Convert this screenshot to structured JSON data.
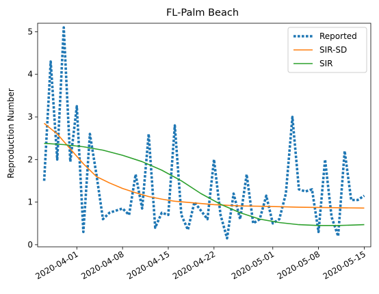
{
  "chart_data": {
    "type": "line",
    "title": "FL-Palm Beach",
    "xlabel": "",
    "ylabel": "Reproduction Number",
    "x_ticks": [
      "2020-04-01",
      "2020-04-08",
      "2020-04-15",
      "2020-04-22",
      "2020-05-01",
      "2020-05-08",
      "2020-05-15"
    ],
    "y_ticks": [
      "0",
      "1",
      "2",
      "3",
      "4",
      "5"
    ],
    "xlim": [
      "2020-03-26",
      "2020-05-16"
    ],
    "ylim": [
      -0.05,
      5.2
    ],
    "grid": false,
    "legend_position": "top-right",
    "series": [
      {
        "name": "Reported",
        "style": "dotted",
        "color": "#1f77b4",
        "points": [
          [
            "2020-03-27",
            1.5
          ],
          [
            "2020-03-28",
            4.3
          ],
          [
            "2020-03-29",
            2.0
          ],
          [
            "2020-03-30",
            5.1
          ],
          [
            "2020-03-31",
            1.95
          ],
          [
            "2020-04-01",
            3.25
          ],
          [
            "2020-04-02",
            0.3
          ],
          [
            "2020-04-03",
            2.6
          ],
          [
            "2020-04-04",
            1.65
          ],
          [
            "2020-04-05",
            0.6
          ],
          [
            "2020-04-06",
            0.75
          ],
          [
            "2020-04-07",
            0.8
          ],
          [
            "2020-04-08",
            0.85
          ],
          [
            "2020-04-09",
            0.7
          ],
          [
            "2020-04-10",
            1.65
          ],
          [
            "2020-04-11",
            0.85
          ],
          [
            "2020-04-12",
            2.6
          ],
          [
            "2020-04-13",
            0.4
          ],
          [
            "2020-04-14",
            0.75
          ],
          [
            "2020-04-15",
            0.7
          ],
          [
            "2020-04-16",
            2.8
          ],
          [
            "2020-04-17",
            0.7
          ],
          [
            "2020-04-18",
            0.35
          ],
          [
            "2020-04-19",
            1.0
          ],
          [
            "2020-04-20",
            0.8
          ],
          [
            "2020-04-21",
            0.6
          ],
          [
            "2020-04-22",
            2.0
          ],
          [
            "2020-04-23",
            0.7
          ],
          [
            "2020-04-24",
            0.15
          ],
          [
            "2020-04-25",
            1.2
          ],
          [
            "2020-04-26",
            0.6
          ],
          [
            "2020-04-27",
            1.65
          ],
          [
            "2020-04-28",
            0.5
          ],
          [
            "2020-04-29",
            0.6
          ],
          [
            "2020-04-30",
            1.15
          ],
          [
            "2020-05-01",
            0.5
          ],
          [
            "2020-05-02",
            0.6
          ],
          [
            "2020-05-03",
            1.2
          ],
          [
            "2020-05-04",
            3.0
          ],
          [
            "2020-05-05",
            1.3
          ],
          [
            "2020-05-06",
            1.25
          ],
          [
            "2020-05-07",
            1.3
          ],
          [
            "2020-05-08",
            0.3
          ],
          [
            "2020-05-09",
            2.0
          ],
          [
            "2020-05-10",
            0.65
          ],
          [
            "2020-05-11",
            0.2
          ],
          [
            "2020-05-12",
            2.2
          ],
          [
            "2020-05-13",
            1.05
          ],
          [
            "2020-05-14",
            1.05
          ],
          [
            "2020-05-15",
            1.15
          ]
        ]
      },
      {
        "name": "SIR-SD",
        "style": "solid",
        "color": "#ff7f0e",
        "points": [
          [
            "2020-03-27",
            2.85
          ],
          [
            "2020-03-29",
            2.6
          ],
          [
            "2020-03-31",
            2.25
          ],
          [
            "2020-04-02",
            1.9
          ],
          [
            "2020-04-04",
            1.6
          ],
          [
            "2020-04-06",
            1.45
          ],
          [
            "2020-04-08",
            1.32
          ],
          [
            "2020-04-10",
            1.22
          ],
          [
            "2020-04-12",
            1.13
          ],
          [
            "2020-04-14",
            1.07
          ],
          [
            "2020-04-16",
            1.02
          ],
          [
            "2020-04-19",
            0.98
          ],
          [
            "2020-04-22",
            0.94
          ],
          [
            "2020-04-26",
            0.91
          ],
          [
            "2020-04-30",
            0.9
          ],
          [
            "2020-05-05",
            0.88
          ],
          [
            "2020-05-10",
            0.87
          ],
          [
            "2020-05-15",
            0.86
          ]
        ]
      },
      {
        "name": "SIR",
        "style": "solid",
        "color": "#2ca02c",
        "points": [
          [
            "2020-03-27",
            2.38
          ],
          [
            "2020-03-30",
            2.35
          ],
          [
            "2020-04-02",
            2.3
          ],
          [
            "2020-04-05",
            2.22
          ],
          [
            "2020-04-08",
            2.1
          ],
          [
            "2020-04-11",
            1.95
          ],
          [
            "2020-04-14",
            1.75
          ],
          [
            "2020-04-17",
            1.5
          ],
          [
            "2020-04-20",
            1.2
          ],
          [
            "2020-04-23",
            0.95
          ],
          [
            "2020-04-26",
            0.75
          ],
          [
            "2020-04-29",
            0.6
          ],
          [
            "2020-05-02",
            0.52
          ],
          [
            "2020-05-05",
            0.47
          ],
          [
            "2020-05-08",
            0.45
          ],
          [
            "2020-05-11",
            0.45
          ],
          [
            "2020-05-15",
            0.47
          ]
        ]
      }
    ]
  }
}
